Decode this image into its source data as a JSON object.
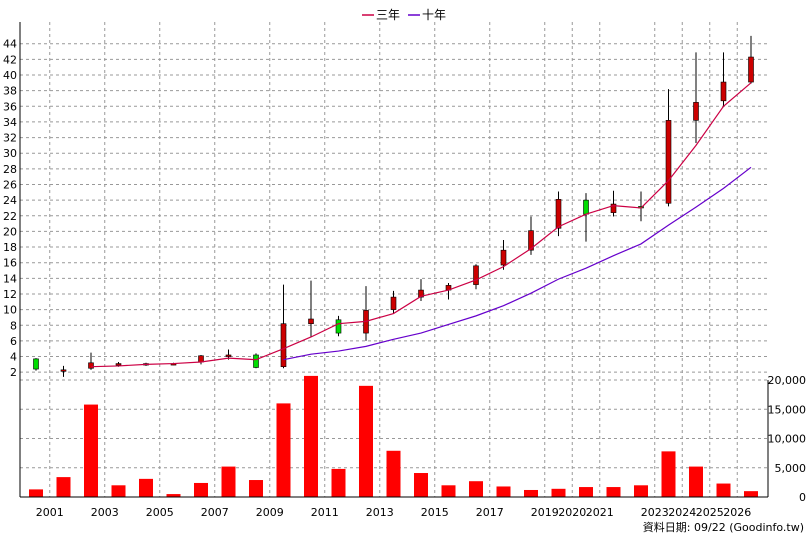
{
  "legend": {
    "ma3_label": "三年",
    "ma10_label": "十年"
  },
  "source_note": "資料日期: 09/22 (Goodinfo.tw)",
  "colors": {
    "up": "#cc0000",
    "down": "#00dd00",
    "volume": "#ff0000",
    "ma3": "#cc0044",
    "ma10": "#6600cc",
    "grid": "#999999"
  },
  "chart_data": [
    {
      "type": "candlestick",
      "title": "",
      "xlabel": "",
      "ylabel": "",
      "ylim": [
        1,
        45.5
      ],
      "yticks": [
        2,
        4,
        6,
        8,
        10,
        12,
        14,
        16,
        18,
        20,
        22,
        24,
        26,
        28,
        30,
        32,
        34,
        36,
        38,
        40,
        42,
        44
      ],
      "grid": true,
      "legend_position": "top-center",
      "x_tick_labels": [
        "2001",
        "2003",
        "2005",
        "2007",
        "2009",
        "2011",
        "2013",
        "2015",
        "2017",
        "2019",
        "2020",
        "2021",
        "2023",
        "2024",
        "2025",
        "2026"
      ],
      "x_tick_label_years": [
        2001,
        2003,
        2005,
        2007,
        2009,
        2011,
        2013,
        2015,
        2017,
        2019,
        2020,
        2021,
        2023,
        2024,
        2025,
        2026
      ],
      "x_years": [
        2000,
        2001,
        2002,
        2003,
        2004,
        2005,
        2006,
        2007,
        2008,
        2009,
        2010,
        2011,
        2012,
        2013,
        2014,
        2015,
        2016,
        2017,
        2018,
        2019,
        2020,
        2021,
        2022,
        2023,
        2024,
        2025,
        2026
      ],
      "candles": [
        {
          "year": 2000,
          "open": 3.7,
          "high": 3.8,
          "low": 2.2,
          "close": 2.4
        },
        {
          "year": 2001,
          "open": 2.3,
          "high": 2.8,
          "low": 1.4,
          "close": 2.3
        },
        {
          "year": 2002,
          "open": 2.5,
          "high": 4.5,
          "low": 2.3,
          "close": 3.2
        },
        {
          "year": 2003,
          "open": 2.9,
          "high": 3.3,
          "low": 2.7,
          "close": 3.1
        },
        {
          "year": 2004,
          "open": 3.0,
          "high": 3.2,
          "low": 2.8,
          "close": 3.1
        },
        {
          "year": 2005,
          "open": 3.0,
          "high": 3.2,
          "low": 2.9,
          "close": 3.1
        },
        {
          "year": 2006,
          "open": 3.3,
          "high": 4.2,
          "low": 3.0,
          "close": 4.1
        },
        {
          "year": 2007,
          "open": 4.0,
          "high": 4.9,
          "low": 3.6,
          "close": 4.2
        },
        {
          "year": 2008,
          "open": 4.2,
          "high": 4.4,
          "low": 2.5,
          "close": 2.6
        },
        {
          "year": 2009,
          "open": 2.7,
          "high": 13.2,
          "low": 2.5,
          "close": 8.2
        },
        {
          "year": 2010,
          "open": 8.2,
          "high": 13.7,
          "low": 6.5,
          "close": 8.8
        },
        {
          "year": 2011,
          "open": 8.7,
          "high": 9.2,
          "low": 6.6,
          "close": 7.0
        },
        {
          "year": 2012,
          "open": 7.0,
          "high": 13.0,
          "low": 6.0,
          "close": 9.9
        },
        {
          "year": 2013,
          "open": 10.0,
          "high": 12.4,
          "low": 9.5,
          "close": 11.6
        },
        {
          "year": 2014,
          "open": 11.6,
          "high": 13.9,
          "low": 11.1,
          "close": 12.5
        },
        {
          "year": 2015,
          "open": 12.5,
          "high": 13.4,
          "low": 11.3,
          "close": 13.1
        },
        {
          "year": 2016,
          "open": 13.2,
          "high": 15.8,
          "low": 12.6,
          "close": 15.6
        },
        {
          "year": 2017,
          "open": 15.7,
          "high": 18.9,
          "low": 15.1,
          "close": 17.6
        },
        {
          "year": 2018,
          "open": 17.6,
          "high": 21.9,
          "low": 17.0,
          "close": 20.1
        },
        {
          "year": 2019,
          "open": 20.4,
          "high": 25.1,
          "low": 19.4,
          "close": 24.1
        },
        {
          "year": 2020,
          "open": 24.0,
          "high": 24.9,
          "low": 18.7,
          "close": 22.2
        },
        {
          "year": 2021,
          "open": 22.4,
          "high": 25.2,
          "low": 21.9,
          "close": 23.5
        },
        {
          "year": 2022,
          "open": 23.2,
          "high": 25.1,
          "low": 21.3,
          "close": 23.0
        },
        {
          "year": 2023,
          "open": 23.6,
          "high": 38.2,
          "low": 23.2,
          "close": 34.2
        },
        {
          "year": 2024,
          "open": 34.2,
          "high": 42.9,
          "low": 31.3,
          "close": 36.5
        },
        {
          "year": 2025,
          "open": 36.7,
          "high": 42.9,
          "low": 35.9,
          "close": 39.1
        },
        {
          "year": 2026,
          "open": 39.1,
          "high": 45.0,
          "low": 38.9,
          "close": 42.3
        }
      ],
      "series": [
        {
          "name": "三年",
          "years": [
            2002,
            2003,
            2004,
            2005,
            2006,
            2007,
            2008,
            2009,
            2010,
            2011,
            2012,
            2013,
            2014,
            2015,
            2016,
            2017,
            2018,
            2019,
            2020,
            2021,
            2022,
            2023,
            2024,
            2025,
            2026
          ],
          "values": [
            2.7,
            2.8,
            3.0,
            3.1,
            3.3,
            3.8,
            3.6,
            5.0,
            6.5,
            8.2,
            8.5,
            9.5,
            11.7,
            12.5,
            13.8,
            15.5,
            17.8,
            20.6,
            22.2,
            23.3,
            23.0,
            26.5,
            31.0,
            36.0,
            39.0
          ]
        },
        {
          "name": "十年",
          "years": [
            2009,
            2010,
            2011,
            2012,
            2013,
            2014,
            2015,
            2016,
            2017,
            2018,
            2019,
            2020,
            2021,
            2022,
            2023,
            2024,
            2025,
            2026
          ],
          "values": [
            3.6,
            4.3,
            4.7,
            5.3,
            6.2,
            7.0,
            8.1,
            9.2,
            10.5,
            12.1,
            13.9,
            15.3,
            16.9,
            18.4,
            20.8,
            23.1,
            25.5,
            28.2
          ]
        }
      ]
    },
    {
      "type": "bar",
      "title": "",
      "xlabel": "",
      "ylabel": "",
      "ylim": [
        0,
        20000
      ],
      "yticks": [
        0,
        5000,
        10000,
        15000,
        20000
      ],
      "ytick_labels": [
        "0",
        "5,000",
        "10,000",
        "15,000",
        "20,000"
      ],
      "grid": true,
      "x": [
        2000,
        2001,
        2002,
        2003,
        2004,
        2005,
        2006,
        2007,
        2008,
        2009,
        2010,
        2011,
        2012,
        2013,
        2014,
        2015,
        2016,
        2017,
        2018,
        2019,
        2020,
        2021,
        2022,
        2023,
        2024,
        2025,
        2026
      ],
      "values": [
        1300,
        3400,
        15800,
        2000,
        3100,
        500,
        2400,
        5200,
        2900,
        16000,
        20700,
        4800,
        19000,
        7900,
        4100,
        2000,
        2700,
        1800,
        1200,
        1400,
        1700,
        1700,
        2000,
        7800,
        5200,
        2300,
        1000
      ]
    }
  ]
}
